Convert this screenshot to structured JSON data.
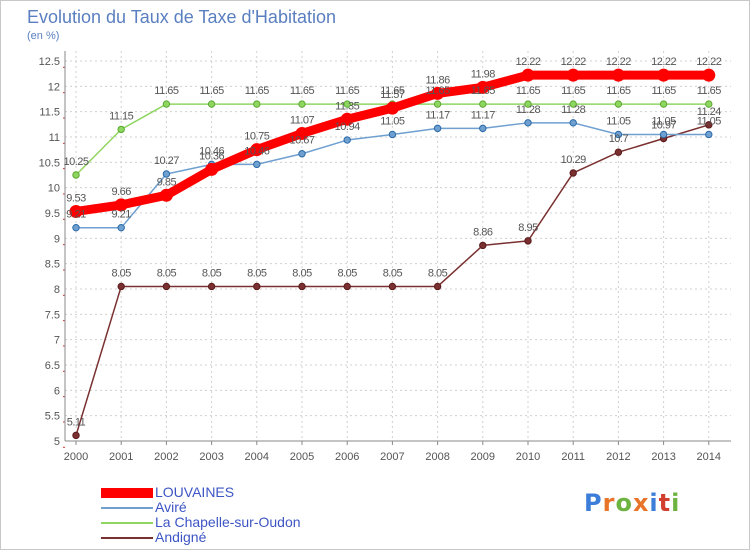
{
  "title": "Evolution du Taux de Taxe d'Habitation",
  "unit": "(en %)",
  "logo": {
    "text": "Proxiti",
    "colors": [
      "#3b7dd8",
      "#e8742a",
      "#6cb33f",
      "#e8742a",
      "#3b7dd8",
      "#d23f2f",
      "#6cb33f"
    ]
  },
  "chart_data": {
    "type": "line",
    "title": "Evolution du Taux de Taxe d'Habitation",
    "ylabel": "(en %)",
    "xlabel": "",
    "x": [
      "2000",
      "2001",
      "2002",
      "2003",
      "2004",
      "2005",
      "2006",
      "2007",
      "2008",
      "2009",
      "2010",
      "2011",
      "2012",
      "2013",
      "2014"
    ],
    "ylim": [
      5,
      12.5
    ],
    "yticks": [
      "5",
      "5.5",
      "6",
      "6.5",
      "7",
      "7.5",
      "8",
      "8.5",
      "9",
      "9.5",
      "10",
      "10.5",
      "11",
      "11.5",
      "12",
      "12.5"
    ],
    "grid": "dotted",
    "legend_position": "bottom-left",
    "series": [
      {
        "name": "LOUVAINES",
        "color": "#ff0000",
        "values": [
          9.53,
          9.66,
          9.85,
          10.36,
          10.75,
          11.07,
          11.35,
          11.57,
          11.86,
          11.98,
          12.22,
          12.22,
          12.22,
          12.22,
          12.22
        ],
        "labels": [
          "9.53",
          "9.66",
          "9.85",
          "10.36",
          "10.75",
          "11.07",
          "11.35",
          "11.57",
          "11.86",
          "11.98",
          "12.22",
          "12.22",
          "12.22",
          "12.22",
          "12.22"
        ]
      },
      {
        "name": "Aviré",
        "color": "#6fa0d0",
        "values": [
          9.21,
          9.21,
          10.27,
          10.46,
          10.46,
          10.67,
          10.94,
          11.05,
          11.17,
          11.17,
          11.28,
          11.28,
          11.05,
          11.05,
          11.05
        ],
        "labels": [
          "9.21",
          "9.21",
          "10.27",
          "10.46",
          "10.46",
          "10.67",
          "10.94",
          "11.05",
          "11.17",
          "11.17",
          "11.28",
          "11.28",
          "11.05",
          "11.05",
          "11.05"
        ]
      },
      {
        "name": "La Chapelle-sur-Oudon",
        "color": "#8ed660",
        "values": [
          10.25,
          11.15,
          11.65,
          11.65,
          11.65,
          11.65,
          11.65,
          11.65,
          11.65,
          11.65,
          11.65,
          11.65,
          11.65,
          11.65,
          11.65
        ],
        "labels": [
          "10.25",
          "11.15",
          "11.65",
          "11.65",
          "11.65",
          "11.65",
          "11.65",
          "11.65",
          "11.65",
          "11.65",
          "11.65",
          "11.65",
          "11.65",
          "11.65",
          "11.65"
        ]
      },
      {
        "name": "Andigné",
        "color": "#7a3030",
        "values": [
          5.11,
          8.05,
          8.05,
          8.05,
          8.05,
          8.05,
          8.05,
          8.05,
          8.05,
          8.86,
          8.95,
          10.29,
          10.7,
          10.97,
          11.24
        ],
        "labels": [
          "5.11",
          "8.05",
          "8.05",
          "8.05",
          "8.05",
          "8.05",
          "8.05",
          "8.05",
          "8.05",
          "8.86",
          "8.95",
          "10.29",
          "10.7",
          "10.97",
          "11.24"
        ]
      }
    ]
  }
}
